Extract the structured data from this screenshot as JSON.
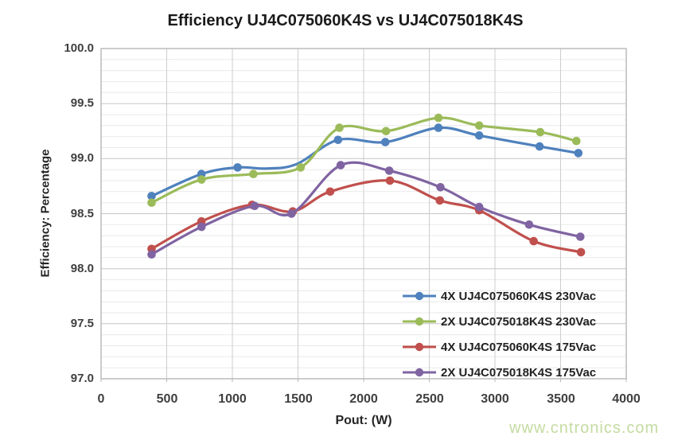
{
  "watermark": {
    "text": "www.cntronics.com",
    "color": "#c4dba2"
  },
  "chart_data": {
    "type": "line",
    "title": "Efficiency UJ4C075060K4S vs UJ4C075018K4S",
    "xlabel": "Pout: (W)",
    "ylabel": "Efficiency: Percentage",
    "xlim": [
      0,
      4000
    ],
    "ylim": [
      97.0,
      100.0
    ],
    "x_ticks": [
      0,
      500,
      1000,
      1500,
      2000,
      2500,
      3000,
      3500,
      4000
    ],
    "y_ticks": [
      "100.0",
      "99.5",
      "99.0",
      "98.5",
      "98.0",
      "97.5",
      "97.0"
    ],
    "grid": {
      "y_major_step": 0.5,
      "y_minor_step": 0.1,
      "x_major_step": 500,
      "major_color": "#c6c6c6",
      "minor_color": "#e9e9e9",
      "vert_color": "#cdcdcd",
      "border_color": "#b7b7b7"
    },
    "legend_position": "inside bottom-right",
    "smooth": true,
    "series": [
      {
        "name": "4X UJ4C075060K4S 230Vac",
        "color": "#4F81BD",
        "points": [
          [
            385,
            98.66,
            1
          ],
          [
            765,
            98.86,
            1
          ],
          [
            1040,
            98.92,
            1
          ],
          [
            1260,
            98.91,
            0
          ],
          [
            1490,
            98.95,
            0
          ],
          [
            1805,
            99.17,
            1
          ],
          [
            2165,
            99.15,
            1
          ],
          [
            2570,
            99.28,
            1
          ],
          [
            2880,
            99.21,
            1
          ],
          [
            3340,
            99.11,
            1
          ],
          [
            3635,
            99.05,
            1
          ]
        ]
      },
      {
        "name": "2X UJ4C075018K4S 230Vac",
        "color": "#9BBB59",
        "points": [
          [
            385,
            98.6,
            1
          ],
          [
            765,
            98.81,
            1
          ],
          [
            1160,
            98.86,
            1
          ],
          [
            1520,
            98.92,
            1
          ],
          [
            1815,
            99.28,
            1
          ],
          [
            2170,
            99.25,
            1
          ],
          [
            2570,
            99.37,
            1
          ],
          [
            2880,
            99.3,
            1
          ],
          [
            3345,
            99.24,
            1
          ],
          [
            3620,
            99.16,
            1
          ]
        ]
      },
      {
        "name": "4X UJ4C075060K4S 175Vac",
        "color": "#C0504D",
        "points": [
          [
            385,
            98.18,
            1
          ],
          [
            765,
            98.43,
            1
          ],
          [
            1150,
            98.58,
            1
          ],
          [
            1460,
            98.52,
            1
          ],
          [
            1745,
            98.7,
            1
          ],
          [
            2200,
            98.8,
            1
          ],
          [
            2580,
            98.62,
            1
          ],
          [
            2880,
            98.53,
            1
          ],
          [
            3295,
            98.25,
            1
          ],
          [
            3655,
            98.15,
            1
          ]
        ]
      },
      {
        "name": "2X UJ4C075018K4S 175Vac",
        "color": "#8064A2",
        "points": [
          [
            385,
            98.13,
            1
          ],
          [
            765,
            98.38,
            1
          ],
          [
            1170,
            98.57,
            1
          ],
          [
            1450,
            98.5,
            1
          ],
          [
            1825,
            98.94,
            1
          ],
          [
            2195,
            98.89,
            1
          ],
          [
            2585,
            98.74,
            1
          ],
          [
            2880,
            98.56,
            1
          ],
          [
            3260,
            98.4,
            1
          ],
          [
            3650,
            98.29,
            1
          ]
        ]
      }
    ]
  }
}
